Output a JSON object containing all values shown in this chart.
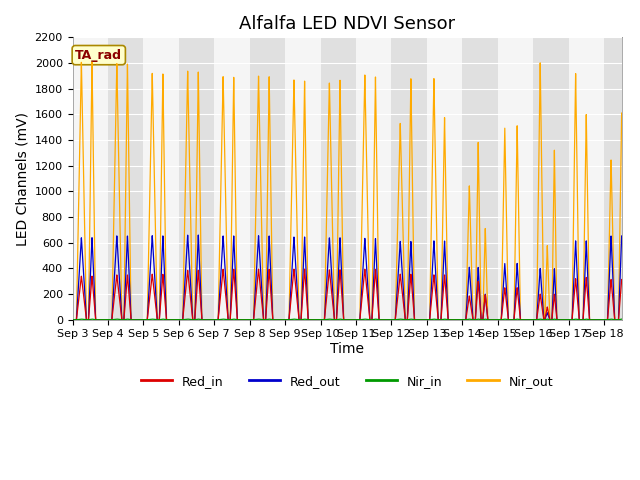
{
  "title": "Alfalfa LED NDVI Sensor",
  "xlabel": "Time",
  "ylabel": "LED Channels (mV)",
  "ylim": [
    0,
    2200
  ],
  "annotation_label": "TA_rad",
  "legend_labels": [
    "Red_in",
    "Red_out",
    "Nir_in",
    "Nir_out"
  ],
  "line_colors": [
    "#dd0000",
    "#0000cc",
    "#009900",
    "#ffaa00"
  ],
  "background_color": "#ffffff",
  "plot_bg_dark": "#e0e0e0",
  "plot_bg_light": "#f5f5f5",
  "title_fontsize": 13,
  "axis_label_fontsize": 10,
  "tick_fontsize": 8,
  "pulses": [
    {
      "c": 0.25,
      "ri": 340,
      "ro": 640,
      "ni": 5,
      "no": 2010,
      "pw": 0.14
    },
    {
      "c": 0.55,
      "ri": 340,
      "ro": 640,
      "ni": 5,
      "no": 2010,
      "pw": 0.1
    },
    {
      "c": 1.25,
      "ri": 350,
      "ro": 655,
      "ni": 5,
      "no": 2000,
      "pw": 0.14
    },
    {
      "c": 1.55,
      "ri": 350,
      "ro": 655,
      "ni": 5,
      "no": 2000,
      "pw": 0.1
    },
    {
      "c": 2.25,
      "ri": 355,
      "ro": 655,
      "ni": 5,
      "no": 1920,
      "pw": 0.14
    },
    {
      "c": 2.55,
      "ri": 355,
      "ro": 655,
      "ni": 5,
      "no": 1920,
      "pw": 0.1
    },
    {
      "c": 3.25,
      "ri": 385,
      "ro": 660,
      "ni": 5,
      "no": 1940,
      "pw": 0.14
    },
    {
      "c": 3.55,
      "ri": 385,
      "ro": 660,
      "ni": 5,
      "no": 1930,
      "pw": 0.1
    },
    {
      "c": 4.25,
      "ri": 395,
      "ro": 655,
      "ni": 5,
      "no": 1900,
      "pw": 0.14
    },
    {
      "c": 4.55,
      "ri": 395,
      "ro": 655,
      "ni": 5,
      "no": 1895,
      "pw": 0.1
    },
    {
      "c": 5.25,
      "ri": 395,
      "ro": 655,
      "ni": 5,
      "no": 1900,
      "pw": 0.14
    },
    {
      "c": 5.55,
      "ri": 395,
      "ro": 655,
      "ni": 5,
      "no": 1900,
      "pw": 0.1
    },
    {
      "c": 6.25,
      "ri": 395,
      "ro": 645,
      "ni": 5,
      "no": 1870,
      "pw": 0.14
    },
    {
      "c": 6.55,
      "ri": 395,
      "ro": 645,
      "ni": 5,
      "no": 1860,
      "pw": 0.1
    },
    {
      "c": 7.25,
      "ri": 390,
      "ro": 640,
      "ni": 5,
      "no": 1850,
      "pw": 0.14
    },
    {
      "c": 7.55,
      "ri": 390,
      "ro": 640,
      "ni": 5,
      "no": 1870,
      "pw": 0.1
    },
    {
      "c": 8.25,
      "ri": 395,
      "ro": 635,
      "ni": 5,
      "no": 1910,
      "pw": 0.14
    },
    {
      "c": 8.55,
      "ri": 395,
      "ro": 635,
      "ni": 5,
      "no": 1900,
      "pw": 0.1
    },
    {
      "c": 9.25,
      "ri": 355,
      "ro": 610,
      "ni": 5,
      "no": 1530,
      "pw": 0.14
    },
    {
      "c": 9.55,
      "ri": 355,
      "ro": 610,
      "ni": 5,
      "no": 1880,
      "pw": 0.1
    },
    {
      "c": 10.2,
      "ri": 350,
      "ro": 615,
      "ni": 5,
      "no": 1880,
      "pw": 0.12
    },
    {
      "c": 10.5,
      "ri": 350,
      "ro": 615,
      "ni": 5,
      "no": 1580,
      "pw": 0.1
    },
    {
      "c": 11.2,
      "ri": 185,
      "ro": 410,
      "ni": 5,
      "no": 1045,
      "pw": 0.1
    },
    {
      "c": 11.45,
      "ri": 300,
      "ro": 410,
      "ni": 5,
      "no": 1390,
      "pw": 0.08
    },
    {
      "c": 11.65,
      "ri": 195,
      "ro": 200,
      "ni": 5,
      "no": 715,
      "pw": 0.07
    },
    {
      "c": 12.2,
      "ri": 250,
      "ro": 440,
      "ni": 5,
      "no": 1500,
      "pw": 0.1
    },
    {
      "c": 12.55,
      "ri": 250,
      "ro": 440,
      "ni": 5,
      "no": 1515,
      "pw": 0.09
    },
    {
      "c": 13.2,
      "ri": 200,
      "ro": 400,
      "ni": 5,
      "no": 2005,
      "pw": 0.1
    },
    {
      "c": 13.4,
      "ri": 100,
      "ro": 55,
      "ni": 5,
      "no": 580,
      "pw": 0.07
    },
    {
      "c": 13.6,
      "ri": 200,
      "ro": 400,
      "ni": 5,
      "no": 1330,
      "pw": 0.07
    },
    {
      "c": 14.2,
      "ri": 320,
      "ro": 615,
      "ni": 5,
      "no": 1920,
      "pw": 0.1
    },
    {
      "c": 14.5,
      "ri": 330,
      "ro": 615,
      "ni": 5,
      "no": 1600,
      "pw": 0.09
    },
    {
      "c": 15.2,
      "ri": 315,
      "ro": 655,
      "ni": 5,
      "no": 1250,
      "pw": 0.1
    },
    {
      "c": 15.5,
      "ri": 315,
      "ro": 655,
      "ni": 5,
      "no": 1615,
      "pw": 0.09
    }
  ]
}
